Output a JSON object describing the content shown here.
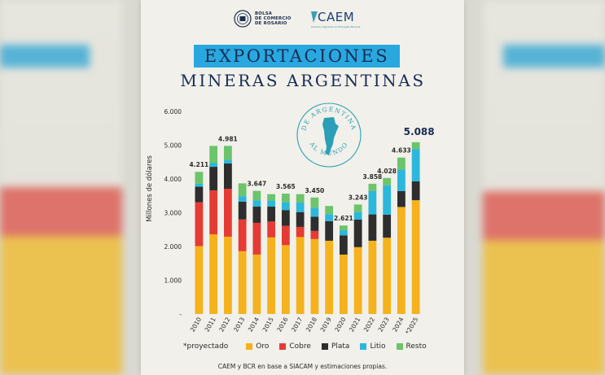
{
  "header": {
    "bcr_lines": [
      "BOLSA",
      "DE COMERCIO",
      "DE ROSARIO"
    ],
    "caem_name": "CAEM",
    "caem_sub": "Cámara Argentina de Empresas Mineras"
  },
  "title": {
    "line1": "EXPORTACIONES",
    "line2": "MINERAS ARGENTINAS"
  },
  "badge": {
    "top": "DE ARGENTINA",
    "bottom": "AL MUNDO"
  },
  "colors": {
    "Oro": "#f5b21c",
    "Cobre": "#e53b34",
    "Plata": "#2e2e2e",
    "Litio": "#2cb7dc",
    "Resto": "#6cc46b",
    "text": "#1a2c55",
    "title_band": "#29a8df"
  },
  "chart_data": {
    "type": "bar",
    "stacked": true,
    "ylabel": "Millones de dólares",
    "ylim": [
      0,
      6000
    ],
    "yticks": [
      "-",
      "1.000",
      "2.000",
      "3.000",
      "4.000",
      "5.000",
      "6.000"
    ],
    "categories": [
      "2010",
      "2011",
      "2012",
      "2013",
      "2014",
      "2015",
      "2016",
      "2017",
      "2018",
      "2019",
      "2020",
      "2021",
      "2022",
      "2023",
      "2024",
      "*2025"
    ],
    "series": [
      {
        "name": "Oro",
        "values": [
          2010,
          2360,
          2290,
          1860,
          1760,
          2270,
          2040,
          2280,
          2220,
          2170,
          1760,
          1980,
          2170,
          2260,
          3170,
          3370
        ]
      },
      {
        "name": "Cobre",
        "values": [
          1300,
          1300,
          1420,
          940,
          940,
          470,
          570,
          300,
          240,
          0,
          0,
          0,
          0,
          0,
          0,
          0
        ]
      },
      {
        "name": "Plata",
        "values": [
          460,
          700,
          750,
          530,
          480,
          440,
          470,
          440,
          420,
          580,
          570,
          820,
          780,
          680,
          470,
          560
        ]
      },
      {
        "name": "Litio",
        "values": [
          90,
          110,
          110,
          160,
          190,
          180,
          230,
          280,
          270,
          210,
          150,
          220,
          690,
          870,
          640,
          960
        ]
      },
      {
        "name": "Resto",
        "values": [
          350,
          510,
          410,
          380,
          277,
          190,
          255,
          250,
          300,
          240,
          141,
          223,
          218,
          218,
          353,
          198
        ]
      }
    ],
    "totals": [
      4211,
      4981,
      4981,
      3870,
      3647,
      3550,
      3565,
      3550,
      3450,
      3200,
      2621,
      3243,
      3858,
      4028,
      4633,
      5088
    ],
    "data_labels": [
      {
        "index": 0,
        "text": "4.211"
      },
      {
        "index": 2,
        "text": "4.981"
      },
      {
        "index": 4,
        "text": "3.647"
      },
      {
        "index": 6,
        "text": "3.565"
      },
      {
        "index": 8,
        "text": "3.450"
      },
      {
        "index": 10,
        "text": "2.621"
      },
      {
        "index": 11,
        "text": "3.243"
      },
      {
        "index": 12,
        "text": "3.858"
      },
      {
        "index": 13,
        "text": "4.028"
      },
      {
        "index": 14,
        "text": "4.633"
      },
      {
        "index": 15,
        "text": "5.088",
        "emphasis": true
      }
    ]
  },
  "legend": {
    "note": "*proyectado",
    "items": [
      "Oro",
      "Cobre",
      "Plata",
      "Litio",
      "Resto"
    ]
  },
  "source": "CAEM y BCR en base a SIACAM y estimaciones propias."
}
